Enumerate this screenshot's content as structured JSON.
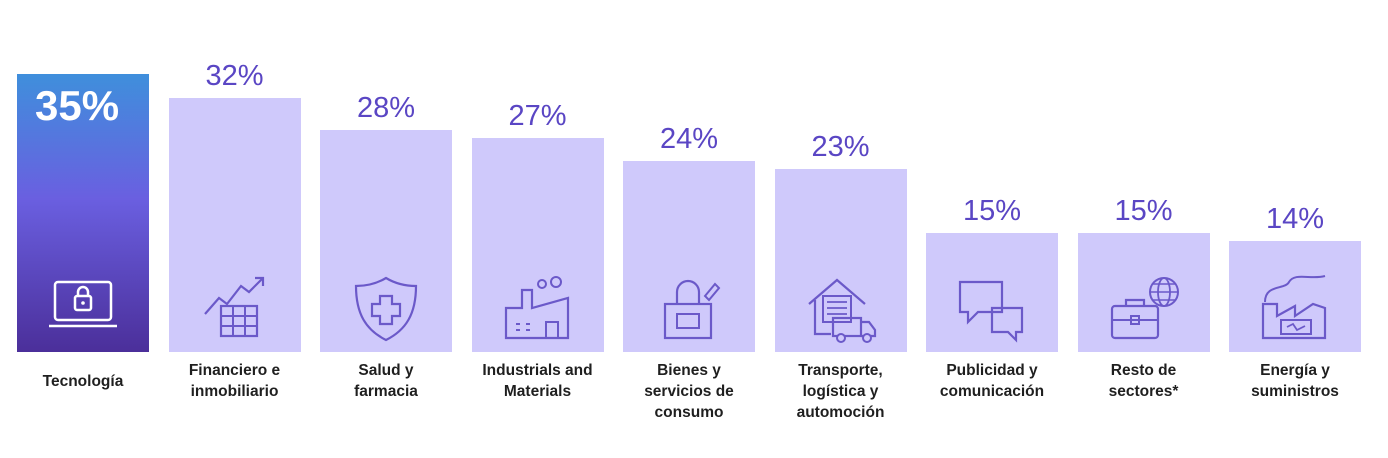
{
  "chart_data": {
    "type": "bar",
    "categories": [
      "Tecnología",
      "Financiero e inmobiliario",
      "Salud y farmacia",
      "Industrials and Materials",
      "Bienes y servicios de consumo",
      "Transporte, logística y automoción",
      "Publicidad y comunicación",
      "Resto de sectores*",
      "Energía y suministros"
    ],
    "category_lines": [
      [
        "Tecnología"
      ],
      [
        "Financiero e",
        "inmobiliario"
      ],
      [
        "Salud y",
        "farmacia"
      ],
      [
        "Industrials and",
        "Materials"
      ],
      [
        "Bienes y",
        "servicios de",
        "consumo"
      ],
      [
        "Transporte,",
        "logística y",
        "automoción"
      ],
      [
        "Publicidad y",
        "comunicación"
      ],
      [
        "Resto de",
        "sectores*"
      ],
      [
        "Energía y",
        "suministros"
      ]
    ],
    "values": [
      35,
      32,
      28,
      27,
      24,
      23,
      15,
      15,
      14
    ],
    "value_labels": [
      "35%",
      "32%",
      "28%",
      "27%",
      "24%",
      "23%",
      "15%",
      "15%",
      "14%"
    ],
    "unit": "%",
    "highlight_index": 0,
    "ylim": [
      0,
      35
    ],
    "grid": false,
    "icons": [
      "laptop-lock-icon",
      "chart-building-icon",
      "shield-cross-icon",
      "factory-icon",
      "shopping-bag-icon",
      "warehouse-truck-icon",
      "chat-bubbles-icon",
      "briefcase-globe-icon",
      "energy-plant-icon"
    ],
    "colors": {
      "bar": "#cfc9fb",
      "highlight_top": "#3f8fdc",
      "highlight_mid": "#6a5fe0",
      "highlight_bottom": "#4b2f9a",
      "value_text": "#5a46c4",
      "icon_stroke": "#6b59c9"
    }
  }
}
